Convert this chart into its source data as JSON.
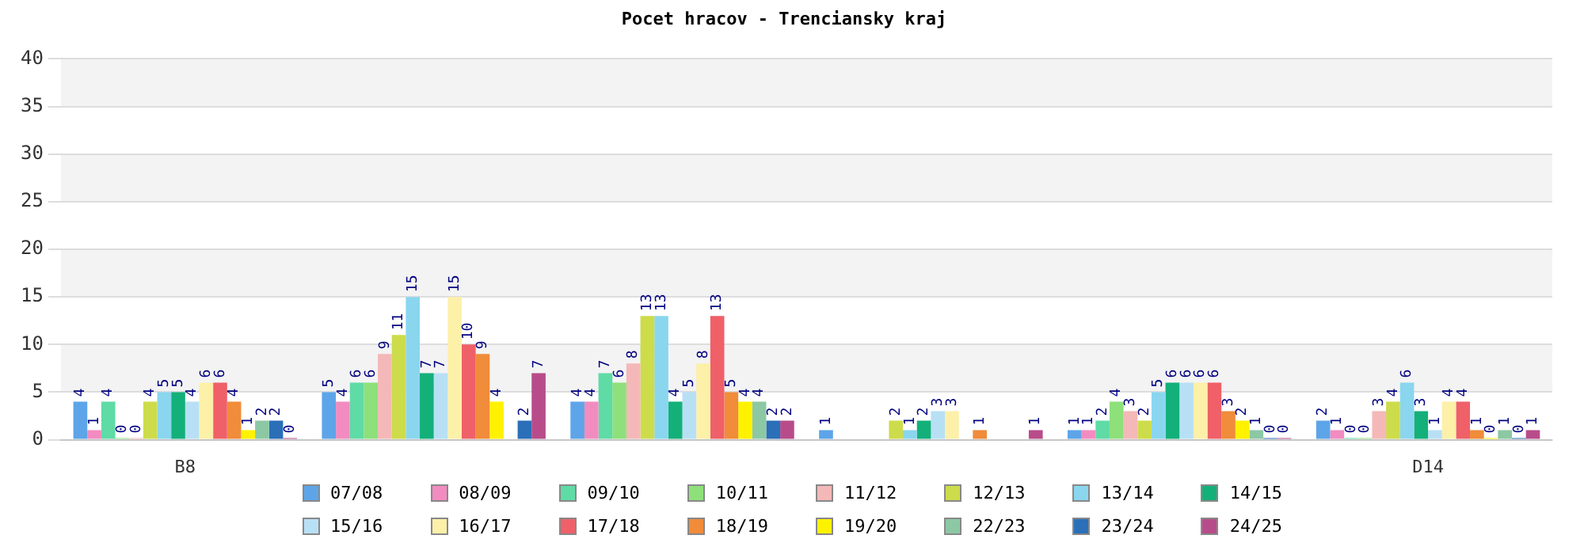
{
  "chart_data": {
    "type": "bar",
    "title": "Pocet hracov - Trenciansky kraj",
    "categories": [
      "B8",
      null,
      null,
      null,
      null,
      "D14"
    ],
    "ylim": [
      0,
      40
    ],
    "yticks": [
      0,
      5,
      10,
      15,
      20,
      25,
      30,
      35,
      40
    ],
    "grid": "y",
    "legend": "bottom",
    "data_labels": true,
    "series": [
      {
        "name": "07/08",
        "color": "#5da5e8",
        "values": [
          4,
          5,
          4,
          1,
          1,
          2
        ]
      },
      {
        "name": "08/09",
        "color": "#f28cc0",
        "values": [
          1,
          4,
          4,
          null,
          1,
          1
        ]
      },
      {
        "name": "09/10",
        "color": "#5fdba6",
        "values": [
          4,
          6,
          7,
          null,
          2,
          0
        ]
      },
      {
        "name": "10/11",
        "color": "#8ee07a",
        "values": [
          0,
          6,
          6,
          null,
          4,
          0
        ]
      },
      {
        "name": "11/12",
        "color": "#f4b8b8",
        "values": [
          0,
          9,
          8,
          null,
          3,
          3
        ]
      },
      {
        "name": "12/13",
        "color": "#cddc4a",
        "values": [
          4,
          11,
          13,
          2,
          2,
          4
        ]
      },
      {
        "name": "13/14",
        "color": "#8ad6ef",
        "values": [
          5,
          15,
          13,
          1,
          5,
          6
        ]
      },
      {
        "name": "14/15",
        "color": "#14b07a",
        "values": [
          5,
          7,
          4,
          2,
          6,
          3
        ]
      },
      {
        "name": "15/16",
        "color": "#b8e0f5",
        "values": [
          4,
          7,
          5,
          3,
          6,
          1
        ]
      },
      {
        "name": "16/17",
        "color": "#fdf0a8",
        "values": [
          6,
          15,
          8,
          3,
          6,
          4
        ]
      },
      {
        "name": "17/18",
        "color": "#ef6068",
        "values": [
          6,
          10,
          13,
          null,
          6,
          4
        ]
      },
      {
        "name": "18/19",
        "color": "#f08c3a",
        "values": [
          4,
          9,
          5,
          1,
          3,
          1
        ]
      },
      {
        "name": "19/20",
        "color": "#fff200",
        "values": [
          1,
          4,
          4,
          null,
          2,
          0
        ]
      },
      {
        "name": "22/23",
        "color": "#8cc8a4",
        "values": [
          2,
          null,
          4,
          null,
          1,
          1
        ]
      },
      {
        "name": "23/24",
        "color": "#2a6fb8",
        "values": [
          2,
          2,
          2,
          null,
          0,
          0
        ]
      },
      {
        "name": "24/25",
        "color": "#b84c8a",
        "values": [
          0,
          7,
          2,
          1,
          0,
          1
        ]
      }
    ]
  }
}
